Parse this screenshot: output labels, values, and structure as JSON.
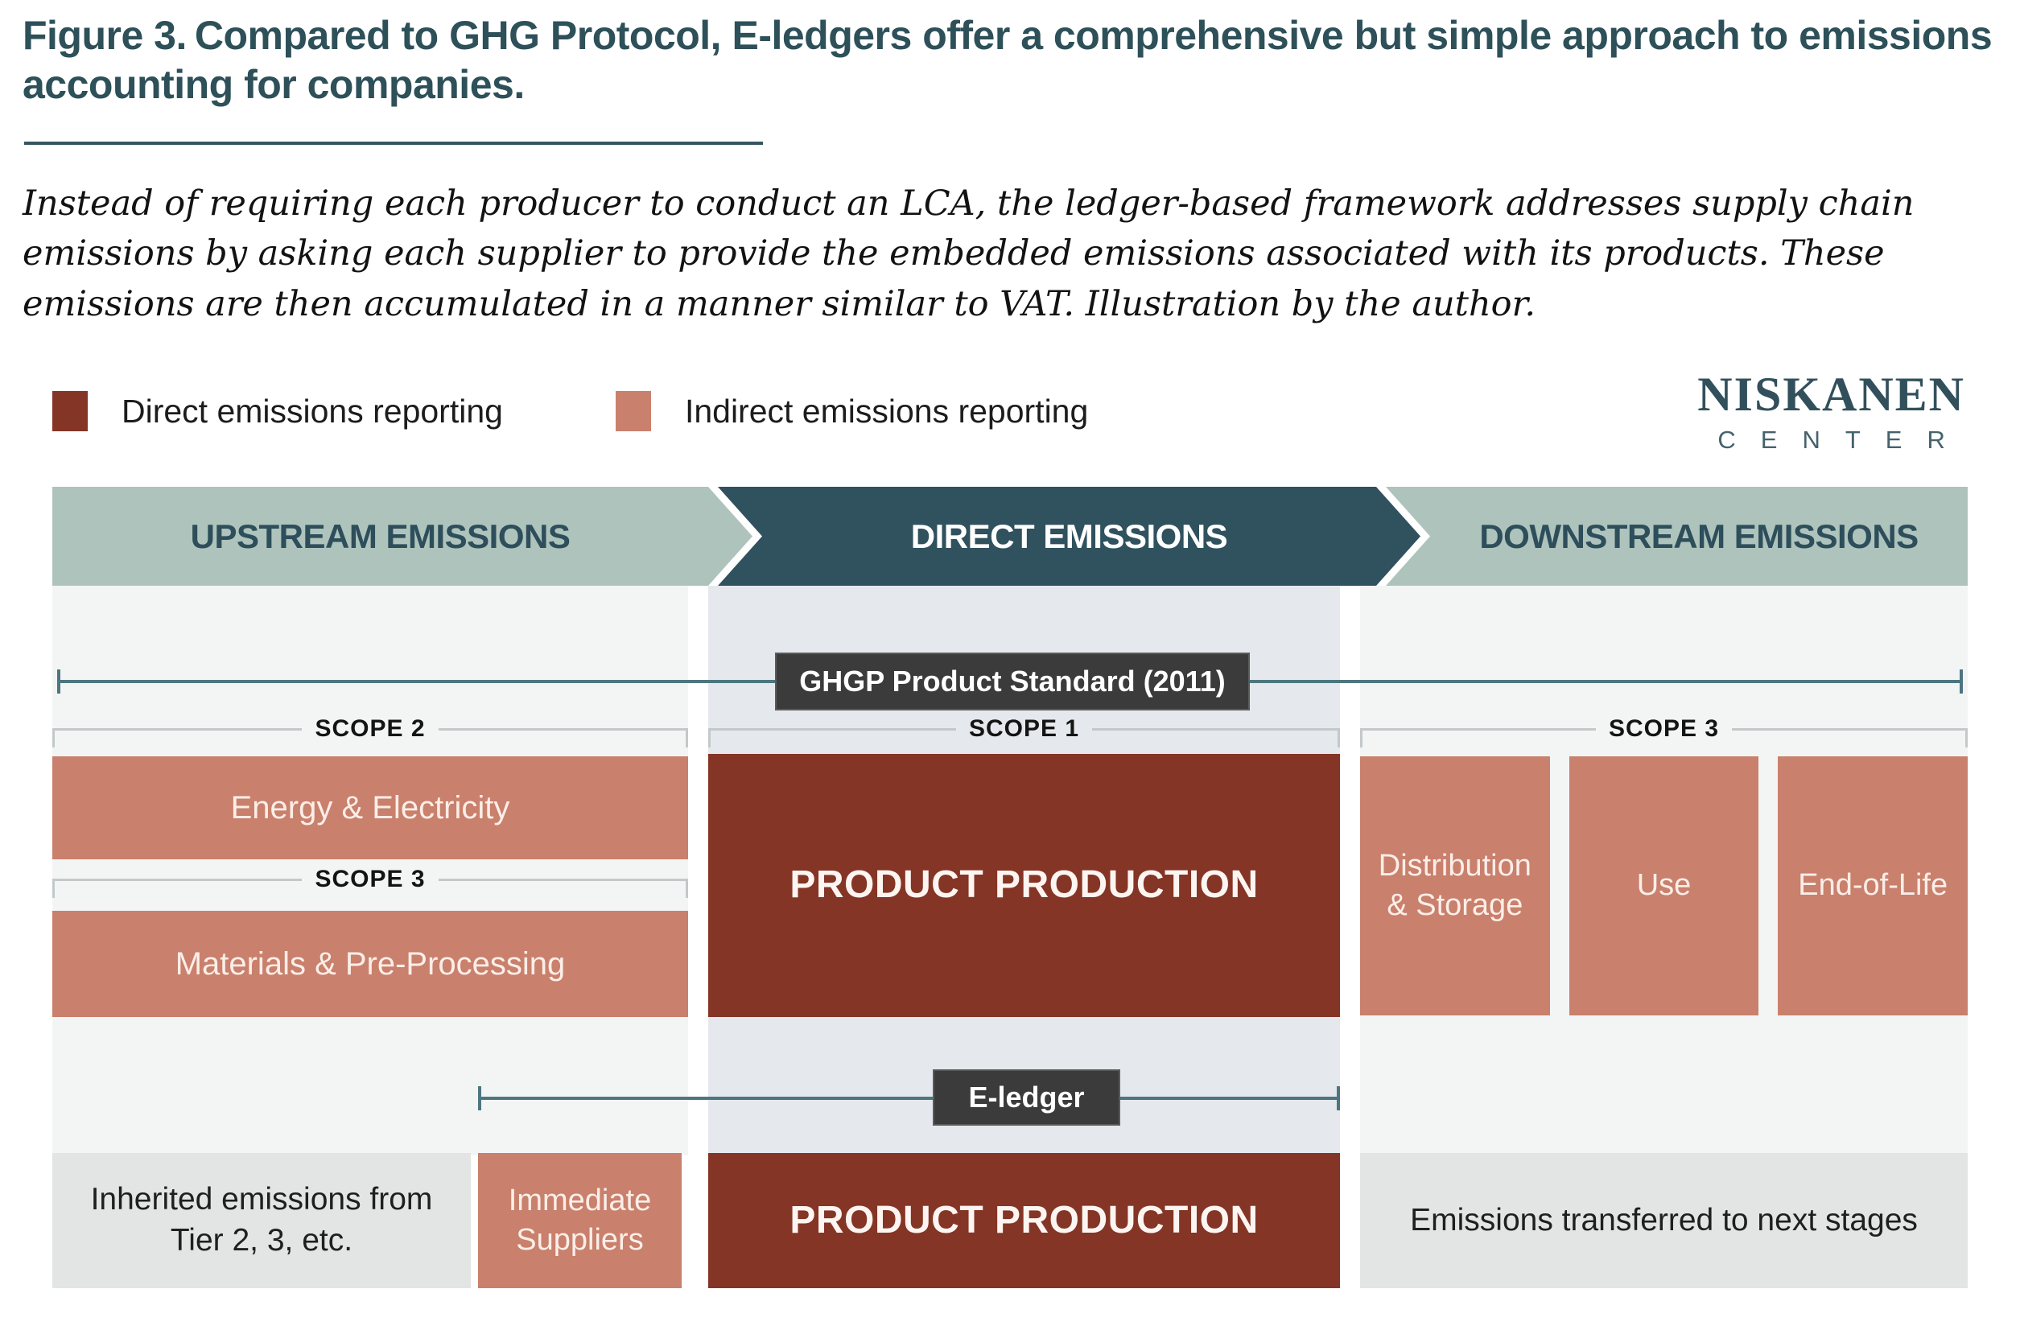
{
  "figure": {
    "label": "Figure 3.",
    "title": "Compared to GHG Protocol, E-ledgers offer a comprehensive but simple approach to emissions accounting for companies.",
    "caption": "Instead of requiring each producer to conduct an LCA, the ledger-based framework addresses supply chain emissions by asking each supplier to provide the embedded emissions associated with its products. These emissions are then accumulated in a manner similar to VAT. Illustration by the author."
  },
  "legend": {
    "items": [
      {
        "label": "Direct emissions reporting",
        "color": "#843525"
      },
      {
        "label": "Indirect emissions reporting",
        "color": "#c9806c"
      }
    ]
  },
  "logo": {
    "line1": "NISKANEN",
    "line2": "CENTER"
  },
  "banners": {
    "upstream": "UPSTREAM EMISSIONS",
    "direct": "DIRECT EMISSIONS",
    "downstream": "DOWNSTREAM EMISSIONS"
  },
  "frameworks": {
    "ghgp_label": "GHGP Product Standard (2011)",
    "eledger_label": "E-ledger"
  },
  "scopes": {
    "upstream_top": "SCOPE 2",
    "upstream_mid": "SCOPE 3",
    "direct": "SCOPE 1",
    "downstream": "SCOPE 3"
  },
  "boxes": {
    "energy": "Energy & Electricity",
    "materials": "Materials & Pre-Processing",
    "production_top": "PRODUCT PRODUCTION",
    "distribution": "Distribution & Storage",
    "use": "Use",
    "end_of_life": "End-of-Life",
    "inherited": "Inherited emissions from Tier 2, 3, etc.",
    "immediate": "Immediate Suppliers",
    "production_bottom": "PRODUCT PRODUCTION",
    "transferred": "Emissions transferred to next stages"
  },
  "colors": {
    "direct_reporting": "#843525",
    "indirect_reporting": "#c9806c",
    "banner_light": "#aec3bc",
    "banner_dark": "#30515e",
    "title_teal": "#2d5059",
    "column_bg_side": "#f3f5f5",
    "column_bg_center": "#e5e9ed",
    "framework_label_bg": "#3b3b3b",
    "timeline": "#4d7680",
    "neutral_box": "#e3e4e4"
  }
}
